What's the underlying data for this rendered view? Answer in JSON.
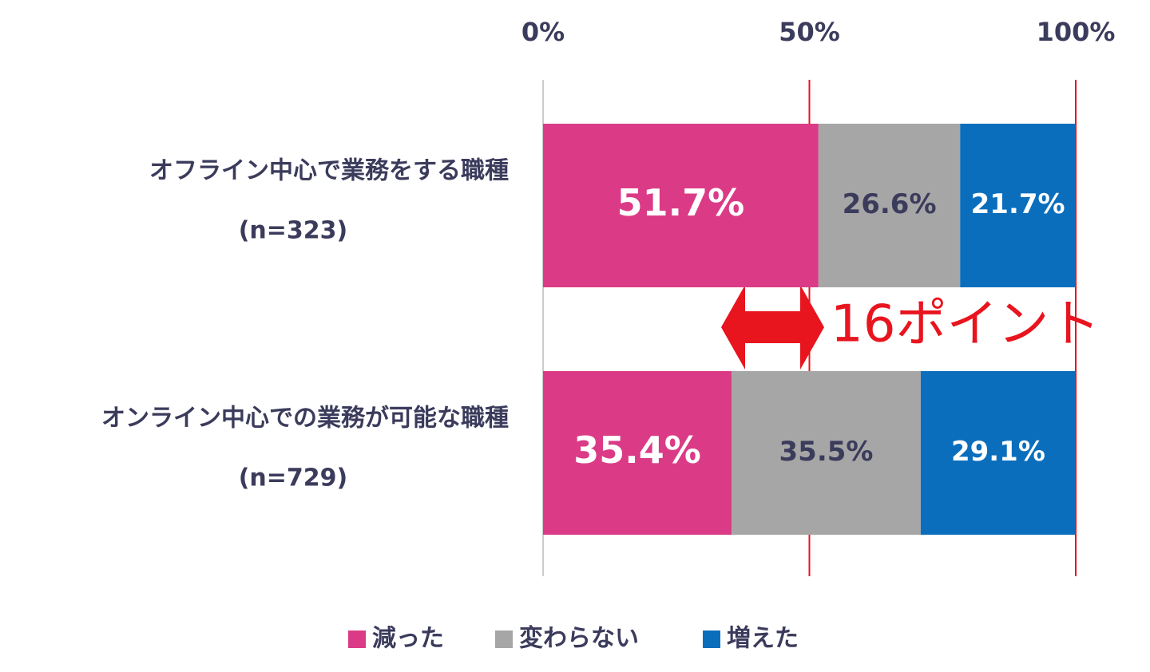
{
  "chart_data": {
    "type": "stacked-bar-horizontal",
    "categories": [
      [
        "オフライン中心で業務をする職種",
        "(n=323)"
      ],
      [
        "オンライン中心での業務が可能な職種",
        "(n=729)"
      ]
    ],
    "series": [
      {
        "name": "減った",
        "color": "#db3b86",
        "values": [
          51.7,
          35.4
        ],
        "value_labels": [
          "51.7%",
          "35.4%"
        ]
      },
      {
        "name": "変わらない",
        "color": "#a6a6a6",
        "values": [
          26.6,
          35.5
        ],
        "value_labels": [
          "26.6%",
          "35.5%"
        ]
      },
      {
        "name": "増えた",
        "color": "#0a6ebd",
        "values": [
          21.7,
          29.1
        ],
        "value_labels": [
          "21.7%",
          "29.1%"
        ]
      }
    ],
    "xlim": [
      0,
      100
    ],
    "xticks": [
      {
        "value": 0,
        "label": "0%"
      },
      {
        "value": 50,
        "label": "50%"
      },
      {
        "value": 100,
        "label": "100%"
      }
    ],
    "annotation": "16ポイント",
    "legend": "bottom"
  }
}
